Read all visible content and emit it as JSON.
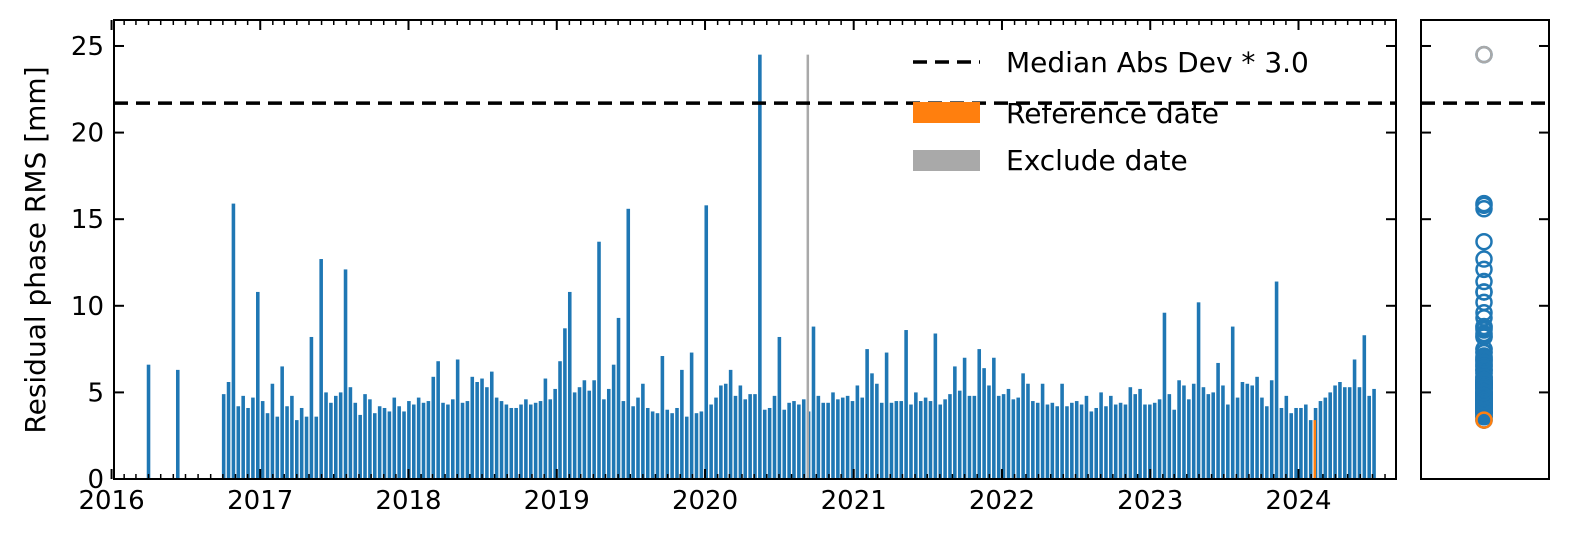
{
  "chart_data": {
    "type": "bar",
    "ylabel": "Residual phase RMS [mm]",
    "xlabel": "",
    "ylim": [
      0,
      26.5
    ],
    "xlim": [
      "2016-01-07",
      "2024-08-28"
    ],
    "yticks": [
      0,
      5,
      10,
      15,
      20,
      25
    ],
    "xticks": [
      "2016",
      "2017",
      "2018",
      "2019",
      "2020",
      "2021",
      "2022",
      "2023",
      "2024"
    ],
    "threshold": {
      "label": "Median Abs Dev * 3.0",
      "value": 21.7,
      "style": "dashed",
      "color": "#000000"
    },
    "legend": {
      "position": "top-right",
      "entries": [
        {
          "label": "Median Abs Dev * 3.0",
          "style": "dashed",
          "color": "#000000"
        },
        {
          "label": "Reference date",
          "color": "#ff7f0e"
        },
        {
          "label": "Exclude date",
          "color": "#a9a9a9"
        }
      ]
    },
    "colors": {
      "normal": "#1f77b4",
      "reference": "#ff7f0e",
      "exclude": "#a9a9a9"
    },
    "reference": {
      "date": "2024-02-10",
      "value": 3.4
    },
    "exclude": {
      "date": "2020-09-10",
      "value": 24.5
    },
    "series": [
      {
        "start": "2016-04-01",
        "step_days": 72,
        "values": [
          6.6,
          6.3
        ]
      },
      {
        "start": "2016-10-03",
        "step_days": 12,
        "values": [
          4.9,
          5.6,
          15.9,
          4.2,
          4.8,
          4.1,
          4.7,
          10.8,
          4.5,
          3.8,
          5.5,
          3.6,
          6.5,
          4.2,
          4.8,
          3.4,
          4.1,
          3.6,
          8.2,
          3.6,
          12.7,
          5.0,
          4.4,
          4.8,
          5.0,
          12.1,
          5.3,
          4.4,
          3.7,
          4.9,
          4.6,
          3.8,
          4.2,
          4.1,
          3.9,
          4.7,
          4.2,
          3.9,
          4.5,
          4.3,
          4.7,
          4.4,
          4.5,
          5.9,
          6.8,
          4.4,
          4.3,
          4.6,
          6.9,
          4.4,
          4.5,
          5.9,
          5.6,
          5.8,
          5.3,
          6.2,
          4.7,
          4.5,
          4.3,
          4.1,
          4.1,
          4.3,
          4.6,
          4.3,
          4.4,
          4.5,
          5.8,
          4.6,
          5.2,
          6.8,
          8.7,
          10.8,
          5.0,
          5.3,
          5.7,
          5.1,
          5.7,
          13.7,
          4.6,
          5.2,
          6.6,
          9.3,
          4.5,
          15.6,
          4.2,
          4.7,
          5.5,
          4.1,
          3.9,
          3.8,
          7.1,
          4.0,
          3.8,
          4.1,
          6.3,
          3.6,
          7.3,
          3.8,
          3.9,
          15.8,
          4.3,
          4.7,
          5.4,
          5.5,
          6.3,
          4.8,
          5.4,
          4.6,
          4.9,
          4.9,
          24.5,
          4.0,
          4.1,
          4.8,
          8.2,
          4.0,
          4.4,
          4.5,
          4.3,
          4.6,
          3.9,
          8.8,
          4.8,
          4.4,
          4.4,
          5.0,
          4.6,
          4.7,
          4.8,
          4.5,
          5.4,
          4.7,
          7.5,
          6.1,
          5.5,
          4.4,
          7.3,
          4.4,
          4.5,
          4.5,
          8.6,
          4.3,
          5.0,
          4.5,
          4.7,
          4.5,
          8.4,
          4.3,
          4.6,
          4.9,
          6.5,
          5.1,
          7.0,
          4.8,
          4.8,
          7.5,
          6.4,
          5.4,
          7.0,
          4.8,
          4.9,
          5.2,
          4.6,
          4.7,
          6.1,
          5.5,
          4.5,
          4.4,
          5.5,
          4.3,
          4.4,
          4.2,
          5.5,
          4.2,
          4.4,
          4.5,
          4.3,
          4.8,
          3.9,
          4.1,
          5.0,
          4.2,
          4.8,
          4.3,
          4.4,
          4.3,
          5.3,
          4.9,
          5.2,
          4.3,
          4.3,
          4.4,
          4.6,
          9.6,
          4.9,
          4.0,
          5.7,
          5.4,
          4.6,
          5.5,
          10.2,
          5.3,
          4.9,
          5.0,
          6.7,
          5.4,
          4.3,
          8.8,
          4.7,
          5.6,
          5.5,
          5.4,
          5.9,
          4.7,
          4.2,
          5.7,
          11.4,
          4.1,
          4.8,
          3.8,
          4.1,
          4.1,
          4.3,
          3.4,
          4.1,
          4.5,
          4.7,
          5.0,
          5.4,
          5.6,
          5.3,
          5.3,
          6.9,
          5.3,
          8.3,
          4.8,
          5.2
        ]
      }
    ]
  }
}
